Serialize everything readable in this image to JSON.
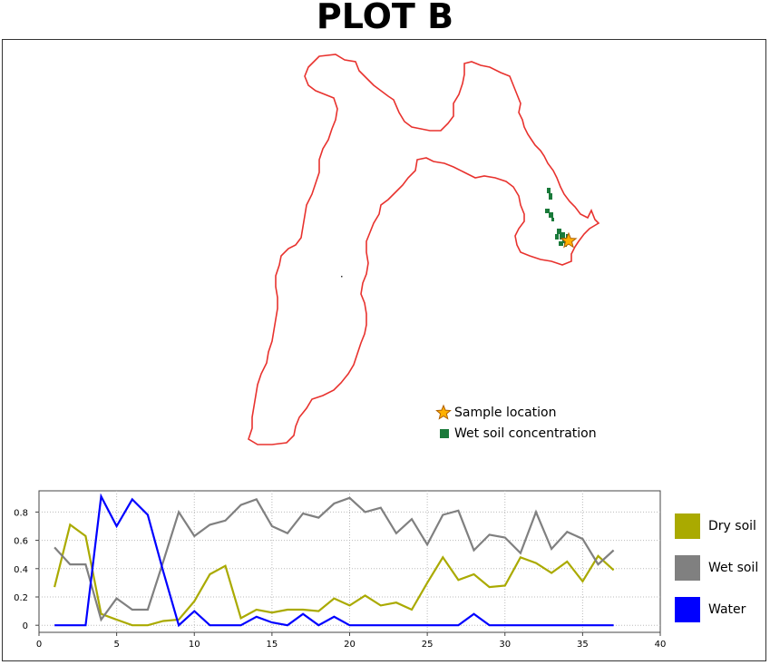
{
  "title": "PLOT B",
  "map": {
    "legend": [
      {
        "label": "Sample location",
        "symbol": "star",
        "color": "#ffb000"
      },
      {
        "label": "Wet soil concentration",
        "symbol": "square",
        "color": "#1a7a3a"
      }
    ],
    "outline_color": "#e8322e"
  },
  "chart_data": {
    "type": "line",
    "x": [
      1,
      2,
      3,
      4,
      5,
      6,
      7,
      8,
      9,
      10,
      11,
      12,
      13,
      14,
      15,
      16,
      17,
      18,
      19,
      20,
      21,
      22,
      23,
      24,
      25,
      26,
      27,
      28,
      29,
      30,
      31,
      32,
      33,
      34,
      35,
      36,
      37
    ],
    "xlim": [
      0,
      40
    ],
    "ylim": [
      -0.05,
      0.95
    ],
    "xticks": [
      0,
      5,
      10,
      15,
      20,
      25,
      30,
      35,
      40
    ],
    "yticks": [
      0,
      0.2,
      0.4,
      0.6,
      0.8
    ],
    "ytick_labels": [
      "0",
      "0.2",
      "0.4",
      "0.6",
      "0.8"
    ],
    "grid": true,
    "legend_position": "right",
    "series": [
      {
        "name": "Dry soil",
        "color": "#aaaa00",
        "values": [
          0.27,
          0.71,
          0.63,
          0.08,
          0.04,
          0.0,
          0.0,
          0.03,
          0.04,
          0.17,
          0.36,
          0.42,
          0.05,
          0.11,
          0.09,
          0.11,
          0.11,
          0.1,
          0.19,
          0.14,
          0.21,
          0.14,
          0.16,
          0.11,
          0.3,
          0.48,
          0.32,
          0.36,
          0.27,
          0.28,
          0.48,
          0.44,
          0.37,
          0.45,
          0.31,
          0.49,
          0.39
        ]
      },
      {
        "name": "Wet soil",
        "color": "#808080",
        "values": [
          0.55,
          0.43,
          0.43,
          0.04,
          0.19,
          0.11,
          0.11,
          0.45,
          0.8,
          0.63,
          0.71,
          0.74,
          0.85,
          0.89,
          0.7,
          0.65,
          0.79,
          0.76,
          0.86,
          0.9,
          0.8,
          0.83,
          0.65,
          0.75,
          0.57,
          0.78,
          0.81,
          0.53,
          0.64,
          0.62,
          0.51,
          0.8,
          0.54,
          0.66,
          0.61,
          0.43,
          0.53
        ]
      },
      {
        "name": "Water",
        "color": "#0000ff",
        "values": [
          0,
          0,
          0,
          0.91,
          0.7,
          0.89,
          0.78,
          0.38,
          0,
          0.1,
          0,
          0,
          0,
          0.06,
          0.02,
          0,
          0.08,
          0,
          0.06,
          0,
          0,
          0,
          0,
          0,
          0,
          0,
          0,
          0.08,
          0,
          0,
          0,
          0,
          0,
          0,
          0,
          0,
          0
        ]
      }
    ]
  }
}
